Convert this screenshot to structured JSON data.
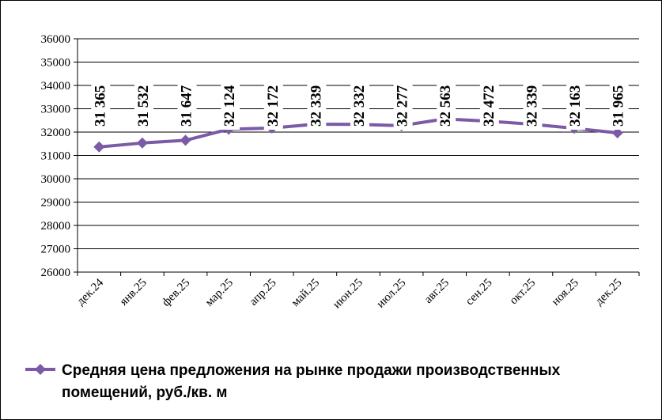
{
  "chart_data": {
    "type": "line",
    "categories": [
      "дек.24",
      "янв.25",
      "фев.25",
      "мар.25",
      "апр.25",
      "май.25",
      "июн.25",
      "июл.25",
      "авг.25",
      "сен.25",
      "окт.25",
      "ноя.25",
      "дек.25"
    ],
    "series": [
      {
        "name": "Средняя цена предложения на рынке продажи  производственных помещений,  руб./кв. м",
        "values": [
          31365,
          31532,
          31647,
          32124,
          32172,
          32339,
          32332,
          32277,
          32563,
          32472,
          32339,
          32163,
          31965
        ],
        "data_labels": [
          "31 365",
          "31 532",
          "31 647",
          "32 124",
          "32 172",
          "32 339",
          "32 332",
          "32 277",
          "32 563",
          "32 472",
          "32 339",
          "32 163",
          "31 965"
        ],
        "color": "#7b5aa6",
        "marker": "diamond"
      }
    ],
    "ylim": [
      26000,
      36000
    ],
    "yticks": [
      26000,
      27000,
      28000,
      29000,
      30000,
      31000,
      32000,
      33000,
      34000,
      35000,
      36000
    ],
    "grid": true,
    "legend_position": "bottom",
    "legend_lines": [
      "Средняя цена предложения на рынке продажи  производственных",
      "помещений,  руб./кв. м"
    ]
  }
}
